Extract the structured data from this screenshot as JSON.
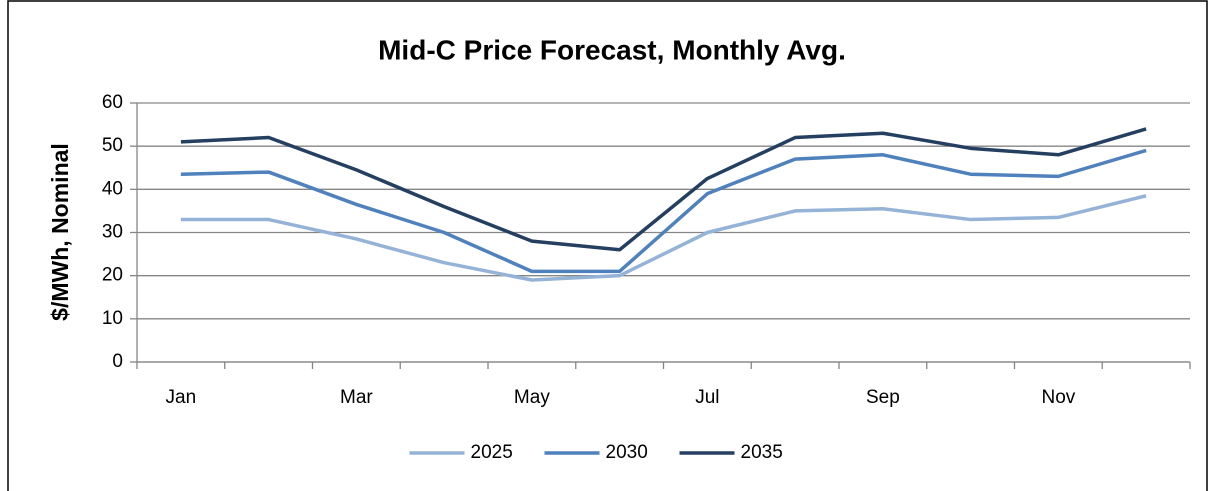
{
  "chart_data": {
    "type": "line",
    "title": "Mid-C Price Forecast, Monthly Avg.",
    "y_label": "$/MWh, Nominal",
    "categories": [
      "Jan",
      null,
      "Mar",
      null,
      "May",
      null,
      "Jul",
      null,
      "Sep",
      null,
      "Nov",
      null
    ],
    "series": [
      {
        "name": "2025",
        "color": "#95b3d7",
        "values": [
          33,
          33,
          28.5,
          23,
          19,
          20,
          30,
          35,
          35.5,
          33,
          33.5,
          38.5
        ]
      },
      {
        "name": "2030",
        "color": "#4f81bd",
        "values": [
          43.5,
          44,
          36.5,
          30,
          21,
          21,
          39,
          47,
          48,
          43.5,
          43,
          49
        ]
      },
      {
        "name": "2035",
        "color": "#243f60",
        "values": [
          51,
          52,
          44.5,
          36,
          28,
          26,
          42.5,
          52,
          53,
          49.5,
          48,
          54
        ]
      }
    ],
    "ylim": [
      0,
      60
    ],
    "yticks": [
      0,
      10,
      20,
      30,
      40,
      50,
      60
    ],
    "grid": true,
    "legend": "bottom"
  }
}
